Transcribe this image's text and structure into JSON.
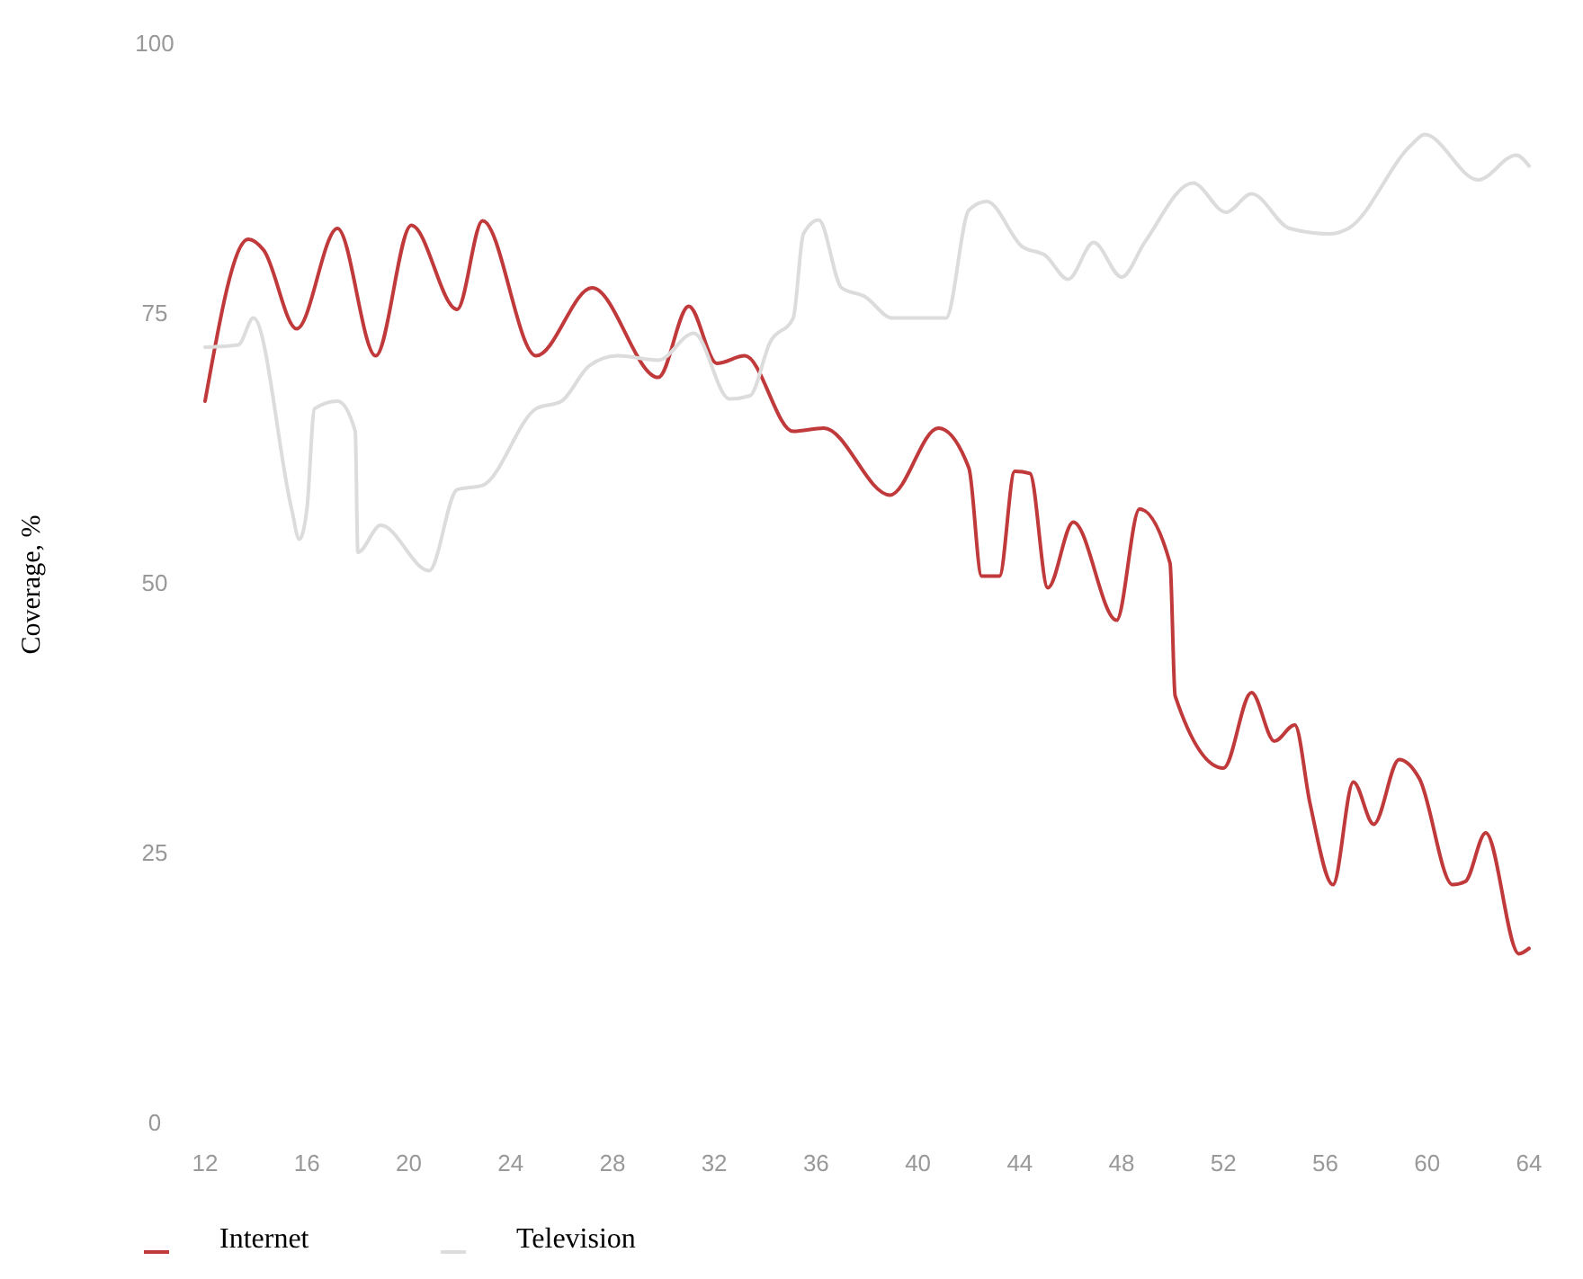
{
  "chart_data": {
    "type": "line",
    "ylabel": "Coverage, %",
    "xlim": [
      12,
      64
    ],
    "ylim": [
      0,
      100
    ],
    "xticks": [
      12,
      16,
      20,
      24,
      28,
      32,
      36,
      40,
      44,
      48,
      52,
      56,
      60,
      64
    ],
    "yticks": [
      0,
      25,
      50,
      75,
      100
    ],
    "grid": false,
    "legend": "bottom left",
    "marker": "none",
    "line_style": "solid",
    "series": [
      {
        "name": "Internet",
        "color": "#c0393b",
        "x": [
          12,
          13.7,
          14.3,
          15.6,
          17.2,
          18.7,
          20.1,
          21.9,
          22.9,
          25,
          27.2,
          29.8,
          31,
          32.1,
          33.2,
          35.1,
          36.3,
          38.9,
          40.8,
          42,
          42.5,
          43.2,
          43.8,
          44.4,
          45.1,
          46.1,
          47.8,
          48.7,
          49.9,
          50.1,
          52,
          53.1,
          54,
          54.8,
          55.4,
          56.3,
          57.1,
          57.9,
          58.9,
          59.7,
          61,
          61.5,
          62.3,
          63.6,
          64
        ],
        "values": [
          67,
          82,
          81,
          73.7,
          83,
          71.2,
          83.3,
          75.5,
          83.7,
          71.2,
          77.5,
          69.2,
          75.8,
          70.5,
          71.2,
          64.2,
          64.5,
          58.3,
          64.5,
          60.8,
          50.8,
          50.8,
          60.5,
          60.3,
          49.7,
          55.8,
          46.7,
          57,
          52,
          39.7,
          33,
          40,
          35.5,
          37,
          29.7,
          22.2,
          31.7,
          27.8,
          33.8,
          32,
          22.2,
          22.5,
          27,
          15.8,
          16.3
        ]
      },
      {
        "name": "Television",
        "color": "#dcdcdc",
        "x": [
          12,
          13.3,
          13.9,
          15.4,
          15.7,
          16,
          16.3,
          17.2,
          17.9,
          18,
          18.9,
          20.8,
          21.9,
          22.9,
          25,
          26,
          27.1,
          28.2,
          29.8,
          31.2,
          32.6,
          33.4,
          34.2,
          35.1,
          35.5,
          36.1,
          37,
          37.9,
          39,
          41.1,
          42,
          42.7,
          44.1,
          45,
          45.9,
          46.9,
          48,
          48.9,
          50.8,
          52.1,
          53.1,
          54.6,
          56.2,
          56.9,
          59.4,
          59.9,
          62,
          63.5,
          64
        ],
        "values": [
          72,
          72.2,
          74.7,
          57,
          54.2,
          57,
          66.3,
          67,
          64.2,
          53,
          55.5,
          51.3,
          58.8,
          59.2,
          66.3,
          67,
          70.3,
          71.2,
          70.8,
          73.3,
          67.2,
          67.5,
          72.5,
          74.7,
          82.5,
          83.8,
          77.5,
          76.7,
          74.7,
          74.7,
          84.7,
          85.5,
          81.3,
          80.5,
          78.3,
          81.7,
          78.5,
          81.7,
          87.2,
          84.5,
          86.2,
          83,
          82.5,
          83,
          90.8,
          91.7,
          87.5,
          89.8,
          88.8
        ]
      }
    ]
  }
}
